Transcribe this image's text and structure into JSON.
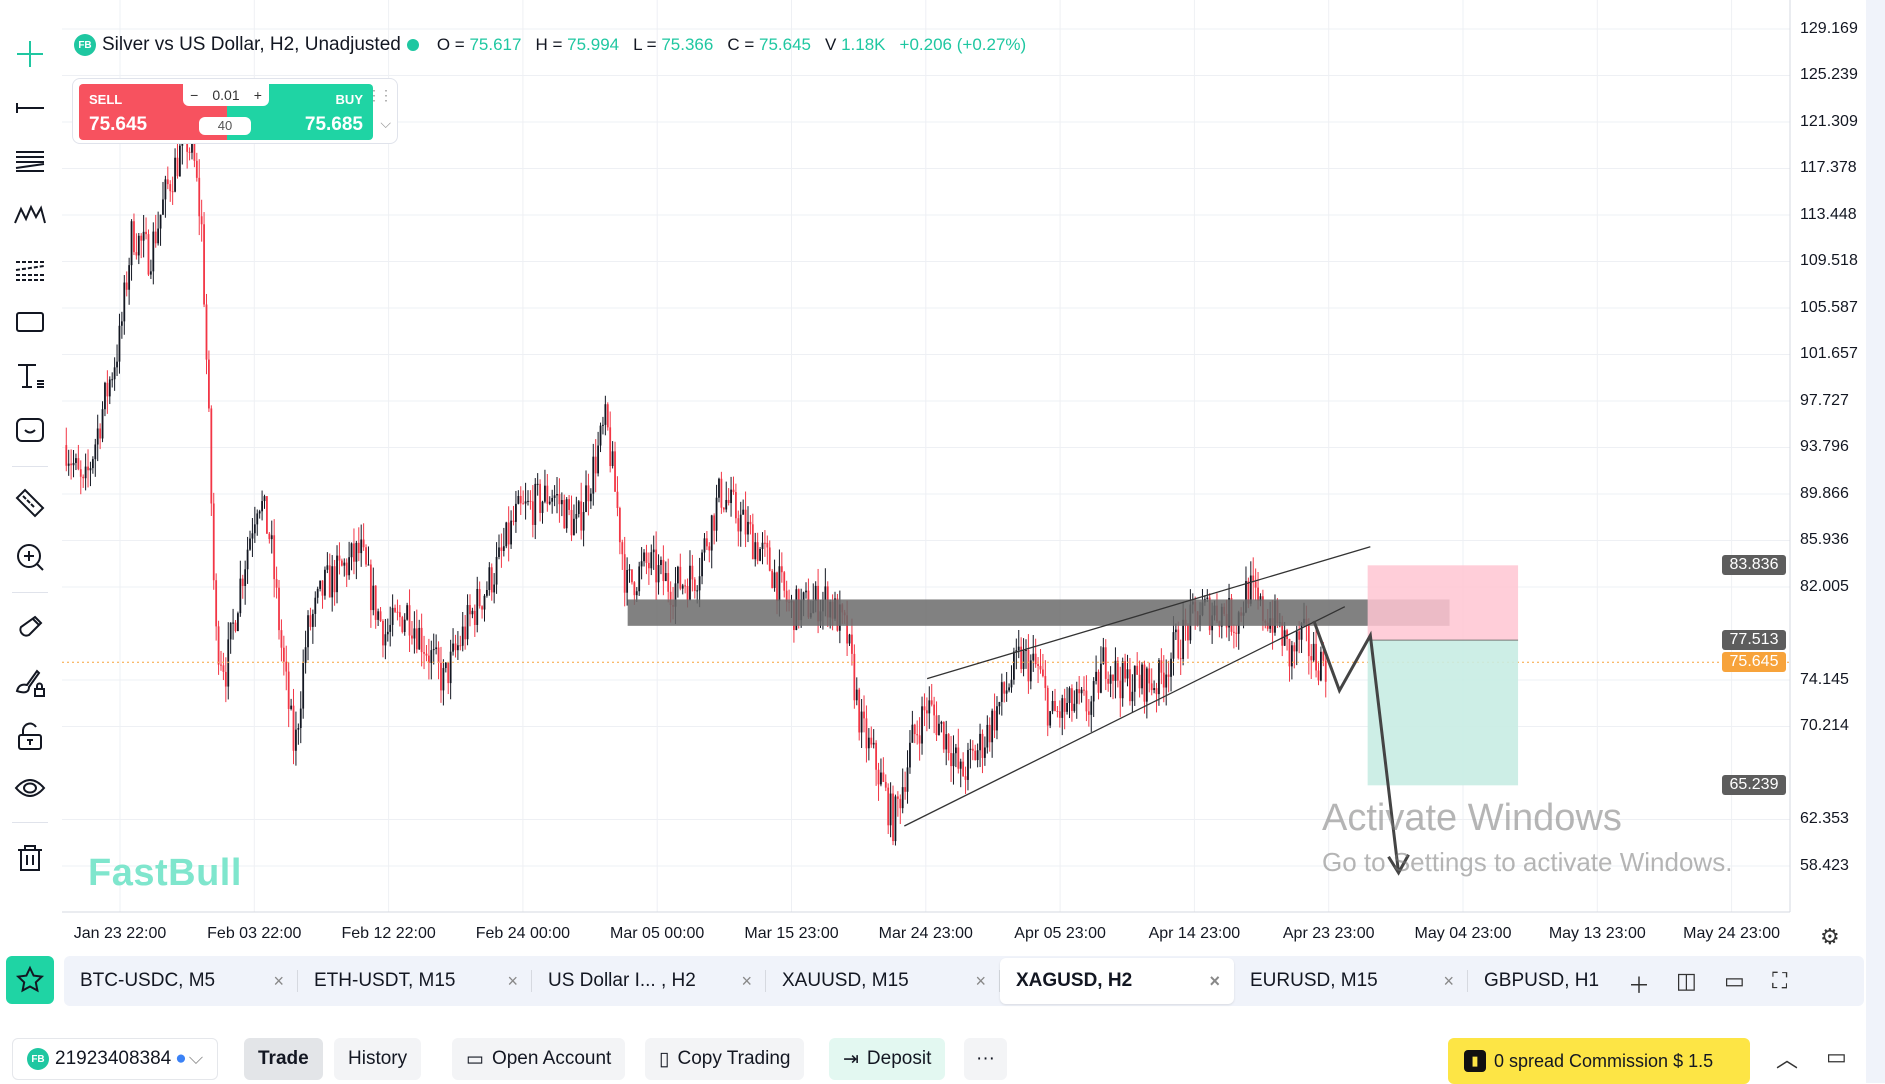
{
  "legend": {
    "badge": "FB",
    "title": "Silver vs US Dollar, H2, Unadjusted",
    "o_label": "O =",
    "o": "75.617",
    "h_label": "H =",
    "h": "75.994",
    "l_label": "L =",
    "l": "75.366",
    "c_label": "C =",
    "c": "75.645",
    "v_label": "V",
    "v": "1.18K",
    "change": "+0.206 (+0.27%)"
  },
  "trade": {
    "sell_label": "SELL",
    "sell_price": "75.645",
    "buy_label": "BUY",
    "buy_price": "75.685",
    "lot": "0.01",
    "minus": "−",
    "plus": "+",
    "spread": "40"
  },
  "watermark_logo": "FastBull",
  "colors": {
    "accent": "#1fc7a1",
    "up": "#131722",
    "down": "#f23645",
    "current": "#f7a33b",
    "tag": "#5d5d5d",
    "zone": "#6b6b6b",
    "profit": "#c8ece3",
    "loss": "#ffc6d2"
  },
  "chart_data": {
    "type": "candlestick",
    "symbol": "XAGUSD",
    "timeframe": "H2",
    "x_labels": [
      "Jan 23 22:00",
      "Feb 03 22:00",
      "Feb 12 22:00",
      "Feb 24 00:00",
      "Mar 05 00:00",
      "Mar 15 23:00",
      "Mar 24 23:00",
      "Apr 05 23:00",
      "Apr 14 23:00",
      "Apr 23 23:00",
      "May 04 23:00",
      "May 13 23:00",
      "May 24 23:00"
    ],
    "y_ticks": [
      "129.169",
      "125.239",
      "121.309",
      "117.378",
      "113.448",
      "109.518",
      "105.587",
      "101.657",
      "97.727",
      "93.796",
      "89.866",
      "85.936",
      "82.005",
      "74.145",
      "70.214",
      "62.353",
      "58.423"
    ],
    "ylim": [
      58.423,
      129.169
    ],
    "price_path_note": "x in label-index units",
    "price_path": [
      [
        -0.4,
        94
      ],
      [
        -0.27,
        90
      ],
      [
        -0.13,
        97
      ],
      [
        0,
        103
      ],
      [
        0.09,
        112
      ],
      [
        0.22,
        110
      ],
      [
        0.36,
        116
      ],
      [
        0.49,
        120
      ],
      [
        0.55,
        118
      ],
      [
        0.61,
        112
      ],
      [
        0.67,
        93
      ],
      [
        0.71,
        78
      ],
      [
        0.79,
        75
      ],
      [
        0.89,
        82
      ],
      [
        1.03,
        90
      ],
      [
        1.12,
        86
      ],
      [
        1.21,
        76
      ],
      [
        1.3,
        68
      ],
      [
        1.39,
        78
      ],
      [
        1.52,
        82
      ],
      [
        1.79,
        85
      ],
      [
        1.88,
        81
      ],
      [
        1.98,
        78
      ],
      [
        2.14,
        80
      ],
      [
        2.41,
        74
      ],
      [
        2.59,
        79
      ],
      [
        2.82,
        84
      ],
      [
        2.95,
        88
      ],
      [
        3.22,
        90
      ],
      [
        3.4,
        87
      ],
      [
        3.62,
        96
      ],
      [
        3.71,
        88
      ],
      [
        3.77,
        82
      ],
      [
        3.93,
        84
      ],
      [
        4.11,
        82
      ],
      [
        4.29,
        83
      ],
      [
        4.47,
        90
      ],
      [
        4.6,
        88
      ],
      [
        4.83,
        84
      ],
      [
        5.0,
        80
      ],
      [
        5.27,
        81
      ],
      [
        5.41,
        78
      ],
      [
        5.52,
        70
      ],
      [
        5.63,
        67
      ],
      [
        5.76,
        62
      ],
      [
        5.9,
        69
      ],
      [
        6.01,
        72
      ],
      [
        6.17,
        69
      ],
      [
        6.26,
        66
      ],
      [
        6.43,
        69
      ],
      [
        6.7,
        76
      ],
      [
        6.84,
        75
      ],
      [
        6.93,
        71
      ],
      [
        7.1,
        72
      ],
      [
        7.24,
        72
      ],
      [
        7.33,
        76
      ],
      [
        7.46,
        74
      ],
      [
        7.73,
        74
      ],
      [
        7.86,
        77
      ],
      [
        8.04,
        80
      ],
      [
        8.22,
        80
      ],
      [
        8.31,
        79
      ],
      [
        8.4,
        82
      ],
      [
        8.49,
        80
      ],
      [
        8.62,
        79
      ],
      [
        8.71,
        76
      ],
      [
        8.8,
        78
      ],
      [
        8.89,
        76
      ],
      [
        8.98,
        75.6
      ]
    ],
    "current_price": 75.645,
    "price_tags": [
      {
        "value": "83.836",
        "kind": "tag"
      },
      {
        "value": "77.513",
        "kind": "tag"
      },
      {
        "value": "75.645",
        "kind": "current"
      },
      {
        "value": "65.239",
        "kind": "tag"
      }
    ],
    "drawings": {
      "zone": {
        "x": [
          3.78,
          9.9
        ],
        "price": [
          78.72,
          80.95
        ]
      },
      "wedge_upper": [
        [
          6.01,
          74.26
        ],
        [
          9.31,
          85.41
        ]
      ],
      "wedge_lower": [
        [
          5.84,
          61.8
        ],
        [
          9.12,
          80.34
        ]
      ],
      "zigzag": [
        [
          8.89,
          79.13
        ],
        [
          9.08,
          73.25
        ],
        [
          9.31,
          77.91
        ],
        [
          9.52,
          57.85
        ]
      ],
      "short_position": {
        "x": [
          9.29,
          10.41
        ],
        "stop": 83.836,
        "entry": 77.513,
        "target": 65.239
      }
    }
  },
  "tabs": [
    {
      "label": "BTC-USDC, M5"
    },
    {
      "label": "ETH-USDT, M15"
    },
    {
      "label": "US Dollar I... , H2"
    },
    {
      "label": "XAUUSD, M15"
    },
    {
      "label": "XAGUSD, H2",
      "active": true
    },
    {
      "label": "EURUSD, M15"
    },
    {
      "label": "GBPUSD, H1"
    }
  ],
  "tab_close": "×",
  "bottom": {
    "badge": "FB",
    "account": "21923408384",
    "trade": "Trade",
    "history": "History",
    "open_account": "Open Account",
    "copy_trading": "Copy Trading",
    "deposit": "Deposit",
    "more": "···",
    "promo": "0 spread Commission $ 1.5"
  },
  "os_watermark": {
    "line1": "Activate Windows",
    "line2": "Go to Settings to activate Windows."
  }
}
